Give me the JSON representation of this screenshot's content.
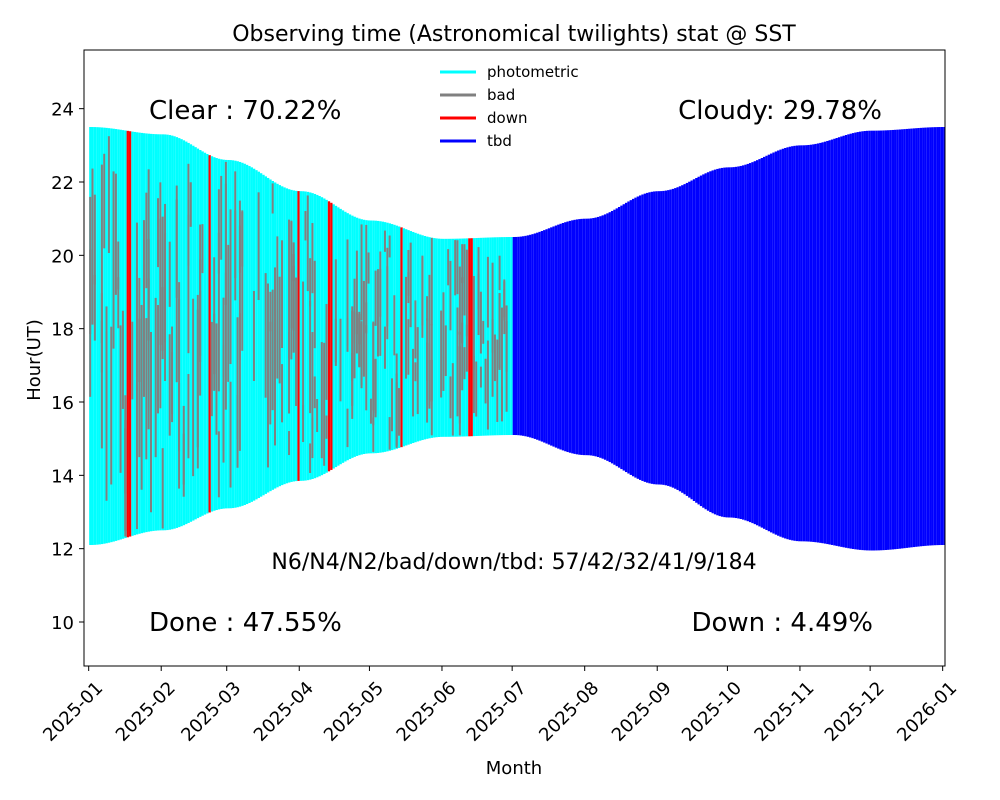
{
  "chart_data": {
    "type": "bar",
    "title": "Observing time (Astronomical twilights) stat @ SST",
    "xlabel": "Month",
    "ylabel": "Hour(UT)",
    "ylim": [
      8.8,
      25.6
    ],
    "xlim": [
      "2024-12-30",
      "2026-01-02"
    ],
    "yticks": [
      "10",
      "12",
      "14",
      "16",
      "18",
      "20",
      "22",
      "24"
    ],
    "yticks_values": [
      10,
      12,
      14,
      16,
      18,
      20,
      22,
      24
    ],
    "xticks": [
      "2025-01",
      "2025-02",
      "2025-03",
      "2025-04",
      "2025-05",
      "2025-06",
      "2025-07",
      "2025-08",
      "2025-09",
      "2025-10",
      "2025-11",
      "2025-12",
      "2026-01"
    ],
    "xticks_dates": [
      "2025-01-01",
      "2025-02-01",
      "2025-03-01",
      "2025-04-01",
      "2025-05-01",
      "2025-06-01",
      "2025-07-01",
      "2025-08-01",
      "2025-09-01",
      "2025-10-01",
      "2025-11-01",
      "2025-12-01",
      "2026-01-01"
    ],
    "legend": {
      "placement": "top-center",
      "entries": [
        {
          "label": "photometric",
          "color": "#00ffff"
        },
        {
          "label": "bad",
          "color": "#808080"
        },
        {
          "label": "down",
          "color": "#ff0000"
        },
        {
          "label": "tbd",
          "color": "#0000ff"
        }
      ]
    },
    "night_window": [
      {
        "date": "2025-01-01",
        "start": 12.1,
        "end": 23.5
      },
      {
        "date": "2025-02-01",
        "start": 12.5,
        "end": 23.3
      },
      {
        "date": "2025-03-01",
        "start": 13.1,
        "end": 22.6
      },
      {
        "date": "2025-04-01",
        "start": 13.85,
        "end": 21.75
      },
      {
        "date": "2025-05-01",
        "start": 14.6,
        "end": 20.95
      },
      {
        "date": "2025-06-01",
        "start": 15.05,
        "end": 20.45
      },
      {
        "date": "2025-07-01",
        "start": 15.1,
        "end": 20.5
      },
      {
        "date": "2025-08-01",
        "start": 14.55,
        "end": 21.0
      },
      {
        "date": "2025-09-01",
        "start": 13.75,
        "end": 21.75
      },
      {
        "date": "2025-10-01",
        "start": 12.85,
        "end": 22.4
      },
      {
        "date": "2025-11-01",
        "start": 12.2,
        "end": 23.0
      },
      {
        "date": "2025-12-01",
        "start": 11.95,
        "end": 23.4
      },
      {
        "date": "2026-01-01",
        "start": 12.1,
        "end": 23.5
      }
    ],
    "observed_until": "2025-06-30",
    "down_nights": [
      {
        "date": "2025-01-17"
      },
      {
        "date": "2025-01-18"
      },
      {
        "date": "2025-02-21"
      },
      {
        "date": "2025-03-31"
      },
      {
        "date": "2025-04-13"
      },
      {
        "date": "2025-04-14"
      },
      {
        "date": "2025-05-14"
      },
      {
        "date": "2025-06-12"
      },
      {
        "date": "2025-06-13"
      }
    ],
    "counts": {
      "N6": 57,
      "N4": 42,
      "N2": 32,
      "bad": 41,
      "down": 9,
      "tbd": 184
    },
    "annotations": {
      "clear": "Clear  : 70.22%",
      "cloudy": "Cloudy: 29.78%",
      "counts_line": "N6/N4/N2/bad/down/tbd: 57/42/32/41/9/184",
      "done": "Done  : 47.55%",
      "down": "Down  : 4.49%"
    },
    "colors": {
      "photometric": "#00ffff",
      "bad": "#808080",
      "down": "#ff0000",
      "tbd": "#0000ff"
    }
  }
}
